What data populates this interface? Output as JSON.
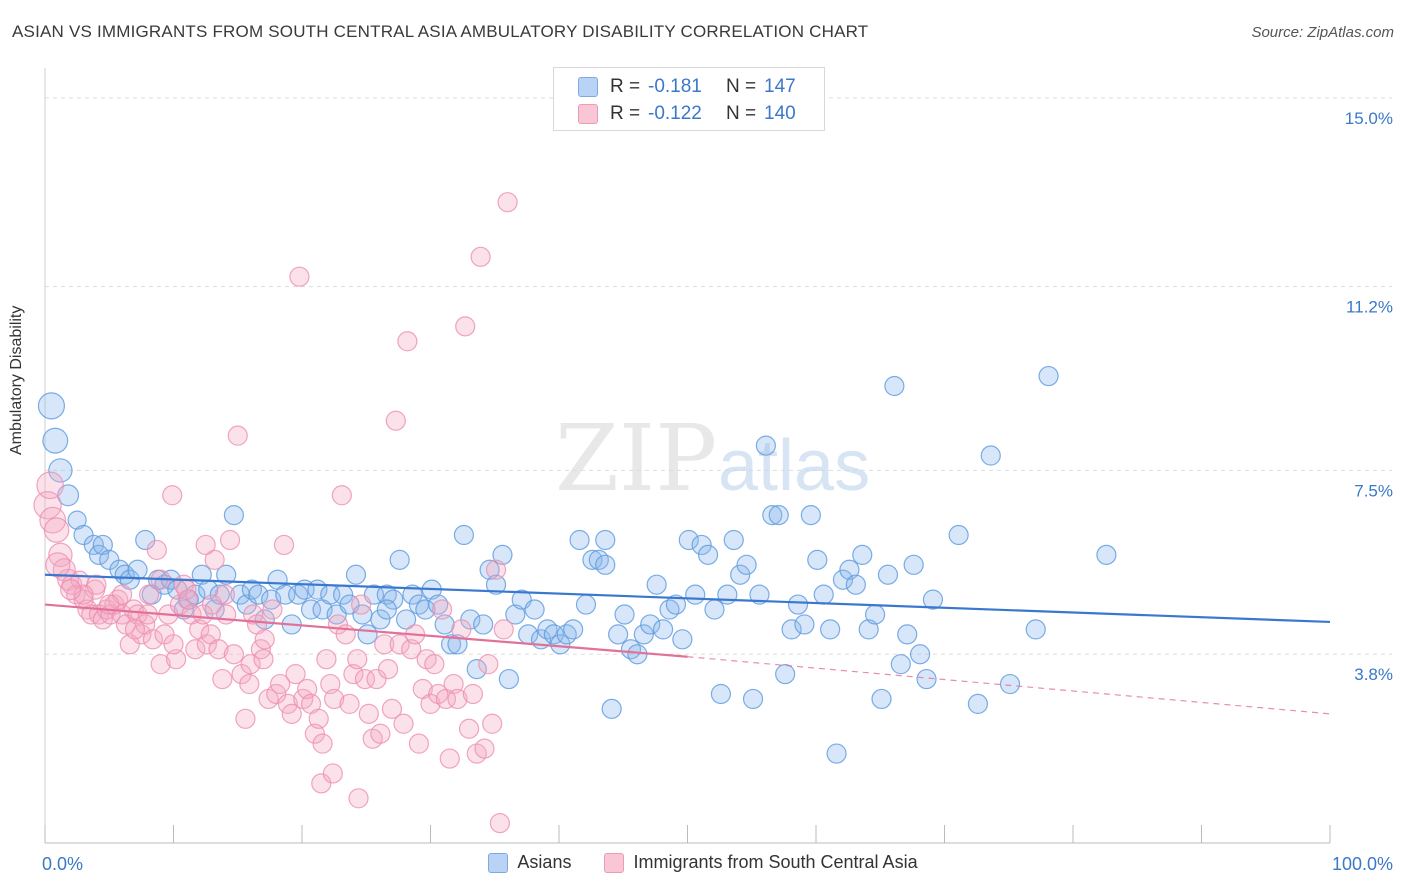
{
  "title": "ASIAN VS IMMIGRANTS FROM SOUTH CENTRAL ASIA AMBULATORY DISABILITY CORRELATION CHART",
  "source": "Source: ZipAtlas.com",
  "watermark": {
    "zip": "ZIP",
    "atlas": "atlas"
  },
  "colors": {
    "blue": "#5b9ae0",
    "blue_line": "#3a78d0",
    "pink": "#ee8fb0",
    "pink_line": "#e2719a",
    "grid": "#dddddd"
  },
  "legend_box": {
    "rows": [
      {
        "r_label": "R =",
        "r_value": "-0.181",
        "n_label": "N =",
        "n_value": "147"
      },
      {
        "r_label": "R =",
        "r_value": "-0.122",
        "n_label": "N =",
        "n_value": "140"
      }
    ]
  },
  "legend_bottom": [
    "Asians",
    "Immigrants from South Central Asia"
  ],
  "chart_data": {
    "type": "scatter",
    "title": "ASIAN VS IMMIGRANTS FROM SOUTH CENTRAL ASIA AMBULATORY DISABILITY CORRELATION CHART",
    "xlabel": "",
    "ylabel": "Ambulatory Disability",
    "xlim": [
      0,
      100
    ],
    "ylim": [
      0,
      15.4
    ],
    "x_tick_labels": [
      "0.0%",
      "100.0%"
    ],
    "y_ticks": [
      3.8,
      7.5,
      11.2,
      15.0
    ],
    "y_tick_labels": [
      "3.8%",
      "7.5%",
      "11.2%",
      "15.0%"
    ],
    "grid": true,
    "series": [
      {
        "name": "Asians",
        "color": "#5b9ae0",
        "trend": {
          "x": [
            0,
            100
          ],
          "y": [
            5.4,
            4.45
          ]
        },
        "points": [
          [
            0.5,
            8.8
          ],
          [
            0.8,
            8.1
          ],
          [
            1.2,
            7.5
          ],
          [
            1.8,
            7.0
          ],
          [
            2.5,
            6.5
          ],
          [
            3,
            6.2
          ],
          [
            3.8,
            6.0
          ],
          [
            4.2,
            5.8
          ],
          [
            4.5,
            6.0
          ],
          [
            5,
            5.7
          ],
          [
            5.8,
            5.5
          ],
          [
            6.2,
            5.4
          ],
          [
            6.6,
            5.3
          ],
          [
            7.2,
            5.5
          ],
          [
            7.8,
            6.1
          ],
          [
            8.3,
            5.0
          ],
          [
            8.8,
            5.3
          ],
          [
            9.3,
            5.2
          ],
          [
            9.8,
            5.3
          ],
          [
            10.3,
            5.1
          ],
          [
            10.8,
            4.7
          ],
          [
            11.2,
            4.9
          ],
          [
            11.7,
            5.0
          ],
          [
            12.2,
            5.4
          ],
          [
            12.7,
            5.1
          ],
          [
            13.2,
            4.7
          ],
          [
            13.6,
            5.0
          ],
          [
            14.1,
            5.4
          ],
          [
            14.7,
            6.6
          ],
          [
            15.2,
            5.0
          ],
          [
            15.7,
            4.8
          ],
          [
            16.1,
            5.1
          ],
          [
            16.6,
            5.0
          ],
          [
            17.1,
            4.5
          ],
          [
            17.6,
            4.9
          ],
          [
            18.1,
            5.3
          ],
          [
            18.7,
            5.0
          ],
          [
            19.2,
            4.4
          ],
          [
            19.7,
            5.0
          ],
          [
            20.2,
            5.1
          ],
          [
            20.7,
            4.7
          ],
          [
            21.2,
            5.1
          ],
          [
            21.6,
            4.7
          ],
          [
            22.2,
            5.0
          ],
          [
            22.7,
            4.6
          ],
          [
            23.2,
            5.0
          ],
          [
            23.7,
            4.8
          ],
          [
            24.2,
            5.4
          ],
          [
            24.7,
            4.6
          ],
          [
            25.1,
            4.2
          ],
          [
            25.6,
            5.0
          ],
          [
            26.1,
            4.5
          ],
          [
            26.6,
            5.0
          ],
          [
            27.1,
            4.9
          ],
          [
            27.6,
            5.7
          ],
          [
            28.1,
            4.5
          ],
          [
            28.6,
            5.0
          ],
          [
            29.1,
            4.8
          ],
          [
            29.6,
            4.7
          ],
          [
            30.1,
            5.1
          ],
          [
            30.6,
            4.8
          ],
          [
            31.1,
            4.4
          ],
          [
            31.6,
            4.0
          ],
          [
            32.1,
            4.0
          ],
          [
            32.6,
            6.2
          ],
          [
            33.1,
            4.5
          ],
          [
            33.6,
            3.5
          ],
          [
            34.1,
            4.4
          ],
          [
            34.6,
            5.5
          ],
          [
            35.1,
            5.2
          ],
          [
            35.6,
            5.8
          ],
          [
            36.1,
            3.3
          ],
          [
            36.6,
            4.6
          ],
          [
            37.1,
            4.9
          ],
          [
            37.6,
            4.2
          ],
          [
            38.1,
            4.7
          ],
          [
            38.6,
            4.1
          ],
          [
            39.1,
            4.3
          ],
          [
            39.6,
            4.2
          ],
          [
            40.1,
            4.0
          ],
          [
            40.6,
            4.2
          ],
          [
            41.1,
            4.3
          ],
          [
            41.6,
            6.1
          ],
          [
            42.1,
            4.8
          ],
          [
            42.6,
            5.7
          ],
          [
            43.1,
            5.7
          ],
          [
            43.6,
            6.1
          ],
          [
            44.1,
            2.7
          ],
          [
            44.6,
            4.2
          ],
          [
            45.1,
            4.6
          ],
          [
            45.6,
            3.9
          ],
          [
            46.1,
            3.8
          ],
          [
            46.6,
            4.2
          ],
          [
            47.1,
            4.4
          ],
          [
            47.6,
            5.2
          ],
          [
            48.1,
            4.3
          ],
          [
            48.6,
            4.7
          ],
          [
            49.1,
            4.8
          ],
          [
            49.6,
            4.1
          ],
          [
            50.1,
            6.1
          ],
          [
            50.6,
            5.0
          ],
          [
            51.1,
            6.0
          ],
          [
            51.6,
            5.8
          ],
          [
            52.1,
            4.7
          ],
          [
            52.6,
            3.0
          ],
          [
            53.1,
            5.0
          ],
          [
            53.6,
            6.1
          ],
          [
            54.1,
            5.4
          ],
          [
            54.6,
            5.6
          ],
          [
            55.1,
            2.9
          ],
          [
            55.6,
            5.0
          ],
          [
            56.1,
            8.0
          ],
          [
            56.6,
            6.6
          ],
          [
            57.1,
            6.6
          ],
          [
            57.6,
            3.4
          ],
          [
            58.1,
            4.3
          ],
          [
            58.6,
            4.8
          ],
          [
            59.1,
            4.4
          ],
          [
            59.6,
            6.6
          ],
          [
            60.1,
            5.7
          ],
          [
            60.6,
            5.0
          ],
          [
            61.1,
            4.3
          ],
          [
            61.6,
            1.8
          ],
          [
            62.1,
            5.3
          ],
          [
            62.6,
            5.5
          ],
          [
            63.1,
            5.2
          ],
          [
            63.6,
            5.8
          ],
          [
            64.1,
            4.3
          ],
          [
            64.6,
            4.6
          ],
          [
            65.1,
            2.9
          ],
          [
            65.6,
            5.4
          ],
          [
            66.1,
            9.2
          ],
          [
            66.6,
            3.6
          ],
          [
            67.1,
            4.2
          ],
          [
            67.6,
            5.6
          ],
          [
            68.1,
            3.8
          ],
          [
            68.6,
            3.3
          ],
          [
            69.1,
            4.9
          ],
          [
            71.1,
            6.2
          ],
          [
            72.6,
            2.8
          ],
          [
            73.6,
            7.8
          ],
          [
            75.1,
            3.2
          ],
          [
            77.1,
            4.3
          ],
          [
            78.1,
            9.4
          ],
          [
            82.6,
            5.8
          ],
          [
            43.6,
            5.6
          ],
          [
            26.6,
            4.7
          ]
        ]
      },
      {
        "name": "Immigrants from South Central Asia",
        "color": "#ee8fb0",
        "trend": {
          "x": [
            0,
            50
          ],
          "y": [
            4.8,
            3.75
          ]
        },
        "trend_dashed": {
          "x": [
            50,
            100
          ],
          "y": [
            3.75,
            2.6
          ]
        },
        "points": [
          [
            0.2,
            6.8
          ],
          [
            0.4,
            7.2
          ],
          [
            0.6,
            6.5
          ],
          [
            0.9,
            6.3
          ],
          [
            1.2,
            5.8
          ],
          [
            1.5,
            5.5
          ],
          [
            1.8,
            5.3
          ],
          [
            2.1,
            5.2
          ],
          [
            2.4,
            5.0
          ],
          [
            2.7,
            5.3
          ],
          [
            3.0,
            4.9
          ],
          [
            3.3,
            4.7
          ],
          [
            3.6,
            4.6
          ],
          [
            3.9,
            5.1
          ],
          [
            4.2,
            4.6
          ],
          [
            4.5,
            4.5
          ],
          [
            4.8,
            4.7
          ],
          [
            5.1,
            4.6
          ],
          [
            5.4,
            4.8
          ],
          [
            5.7,
            4.9
          ],
          [
            6.0,
            4.6
          ],
          [
            6.3,
            4.4
          ],
          [
            6.6,
            4.0
          ],
          [
            6.9,
            4.7
          ],
          [
            7.2,
            4.6
          ],
          [
            7.5,
            4.2
          ],
          [
            7.8,
            4.4
          ],
          [
            8.1,
            5.0
          ],
          [
            8.4,
            4.1
          ],
          [
            8.7,
            5.9
          ],
          [
            9.0,
            3.6
          ],
          [
            9.3,
            4.2
          ],
          [
            9.6,
            4.6
          ],
          [
            9.9,
            7.0
          ],
          [
            10.2,
            3.7
          ],
          [
            10.5,
            4.8
          ],
          [
            10.8,
            5.2
          ],
          [
            11.1,
            4.9
          ],
          [
            11.4,
            4.6
          ],
          [
            11.7,
            3.9
          ],
          [
            12.0,
            4.3
          ],
          [
            12.3,
            4.6
          ],
          [
            12.6,
            4.0
          ],
          [
            12.9,
            4.2
          ],
          [
            13.2,
            5.7
          ],
          [
            13.5,
            3.9
          ],
          [
            13.8,
            3.3
          ],
          [
            14.1,
            4.6
          ],
          [
            14.4,
            6.1
          ],
          [
            14.7,
            3.8
          ],
          [
            15.0,
            8.2
          ],
          [
            15.3,
            3.4
          ],
          [
            15.6,
            2.5
          ],
          [
            15.9,
            3.2
          ],
          [
            16.2,
            4.6
          ],
          [
            16.5,
            4.4
          ],
          [
            16.8,
            3.9
          ],
          [
            17.1,
            4.1
          ],
          [
            17.4,
            2.9
          ],
          [
            17.7,
            4.7
          ],
          [
            18.0,
            3.0
          ],
          [
            18.3,
            3.2
          ],
          [
            18.6,
            6.0
          ],
          [
            18.9,
            2.8
          ],
          [
            19.2,
            2.6
          ],
          [
            19.5,
            3.4
          ],
          [
            19.8,
            11.4
          ],
          [
            20.1,
            2.9
          ],
          [
            20.4,
            3.1
          ],
          [
            20.7,
            2.8
          ],
          [
            21.0,
            2.2
          ],
          [
            21.3,
            2.5
          ],
          [
            21.6,
            2.0
          ],
          [
            21.9,
            3.7
          ],
          [
            22.2,
            3.2
          ],
          [
            22.5,
            2.9
          ],
          [
            22.8,
            4.4
          ],
          [
            23.1,
            7.0
          ],
          [
            23.4,
            4.2
          ],
          [
            23.7,
            2.8
          ],
          [
            24.0,
            3.4
          ],
          [
            24.3,
            3.7
          ],
          [
            24.6,
            4.8
          ],
          [
            24.9,
            3.3
          ],
          [
            25.2,
            2.6
          ],
          [
            25.5,
            2.1
          ],
          [
            25.8,
            3.3
          ],
          [
            26.1,
            2.2
          ],
          [
            26.4,
            4.0
          ],
          [
            26.7,
            3.5
          ],
          [
            27.0,
            2.7
          ],
          [
            27.3,
            8.5
          ],
          [
            27.6,
            4.0
          ],
          [
            27.9,
            2.4
          ],
          [
            28.2,
            10.1
          ],
          [
            28.5,
            3.9
          ],
          [
            28.8,
            4.2
          ],
          [
            29.1,
            2.0
          ],
          [
            29.4,
            3.1
          ],
          [
            29.7,
            3.7
          ],
          [
            30.0,
            2.8
          ],
          [
            30.3,
            3.6
          ],
          [
            30.6,
            3.0
          ],
          [
            30.9,
            4.7
          ],
          [
            31.2,
            2.9
          ],
          [
            31.5,
            1.7
          ],
          [
            31.8,
            3.2
          ],
          [
            32.1,
            2.9
          ],
          [
            32.4,
            4.3
          ],
          [
            32.7,
            10.4
          ],
          [
            33.0,
            2.3
          ],
          [
            33.3,
            3.0
          ],
          [
            33.6,
            1.8
          ],
          [
            33.9,
            11.8
          ],
          [
            34.2,
            1.9
          ],
          [
            34.5,
            3.6
          ],
          [
            34.8,
            2.4
          ],
          [
            35.1,
            5.5
          ],
          [
            35.4,
            0.4
          ],
          [
            35.7,
            4.3
          ],
          [
            36.0,
            12.9
          ],
          [
            21.5,
            1.2
          ],
          [
            24.4,
            0.9
          ],
          [
            22.4,
            1.4
          ],
          [
            16.0,
            3.6
          ],
          [
            17.0,
            3.7
          ],
          [
            14.0,
            5.0
          ],
          [
            12.5,
            6.0
          ],
          [
            11.0,
            5.1
          ],
          [
            13.0,
            4.8
          ],
          [
            10.0,
            4.0
          ],
          [
            9.0,
            5.3
          ],
          [
            8.0,
            4.6
          ],
          [
            7.0,
            4.3
          ],
          [
            6.0,
            5.0
          ],
          [
            5.0,
            4.8
          ],
          [
            4.0,
            5.2
          ],
          [
            3.0,
            5.0
          ],
          [
            2.0,
            5.1
          ],
          [
            1.0,
            5.6
          ]
        ]
      }
    ]
  }
}
